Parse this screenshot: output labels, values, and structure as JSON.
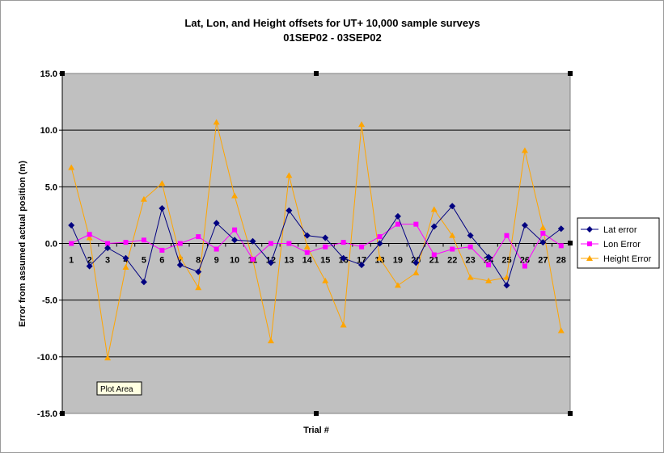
{
  "chart_data": {
    "type": "line",
    "title": "Lat, Lon, and Height offsets for UT+ 10,000 sample surveys",
    "subtitle": "01SEP02 - 03SEP02",
    "xlabel": "Trial #",
    "ylabel": "Error from assumed actual position (m)",
    "ylim": [
      -15,
      15
    ],
    "y_ticks": [
      "15.0",
      "10.0",
      "5.0",
      "0.0",
      "-5.0",
      "-10.0",
      "-15.0"
    ],
    "categories": [
      "1",
      "2",
      "3",
      "4",
      "5",
      "6",
      "7",
      "8",
      "9",
      "10",
      "11",
      "12",
      "13",
      "14",
      "15",
      "16",
      "17",
      "18",
      "19",
      "20",
      "21",
      "22",
      "23",
      "24",
      "25",
      "26",
      "27",
      "28"
    ],
    "grid": true,
    "legend_position": "right",
    "series": [
      {
        "name": "Lat error",
        "color": "#000080",
        "marker": "diamond",
        "values": [
          1.6,
          -2.0,
          -0.4,
          -1.3,
          -3.4,
          3.1,
          -1.9,
          -2.5,
          1.8,
          0.3,
          0.2,
          -1.7,
          2.9,
          0.7,
          0.5,
          -1.3,
          -1.9,
          0.0,
          2.4,
          -1.7,
          1.5,
          3.3,
          0.7,
          -1.2,
          -3.7,
          1.6,
          0.1,
          1.3
        ]
      },
      {
        "name": "Lon Error",
        "color": "#ff00ff",
        "marker": "square",
        "values": [
          0.0,
          0.8,
          0.0,
          0.1,
          0.3,
          -0.6,
          0.0,
          0.6,
          -0.5,
          1.2,
          -1.4,
          0.0,
          0.0,
          -0.8,
          -0.3,
          0.1,
          -0.3,
          0.6,
          1.7,
          1.7,
          -1.0,
          -0.5,
          -0.3,
          -1.9,
          0.7,
          -2.0,
          0.9,
          -0.2
        ]
      },
      {
        "name": "Height Error",
        "color": "#ffa500",
        "marker": "triangle",
        "values": [
          6.7,
          0.5,
          -10.1,
          -2.1,
          3.9,
          5.3,
          -1.2,
          -3.9,
          10.7,
          4.2,
          -1.4,
          -8.6,
          6.0,
          -0.3,
          -3.3,
          -7.2,
          10.5,
          -1.3,
          -3.7,
          -2.6,
          3.0,
          0.7,
          -3.0,
          -3.3,
          -3.0,
          8.2,
          1.4,
          -7.7
        ]
      }
    ]
  },
  "colors": {
    "plot_background": "#c0c0c0",
    "gridline": "#000000"
  },
  "tooltip": {
    "label": "Plot Area"
  }
}
